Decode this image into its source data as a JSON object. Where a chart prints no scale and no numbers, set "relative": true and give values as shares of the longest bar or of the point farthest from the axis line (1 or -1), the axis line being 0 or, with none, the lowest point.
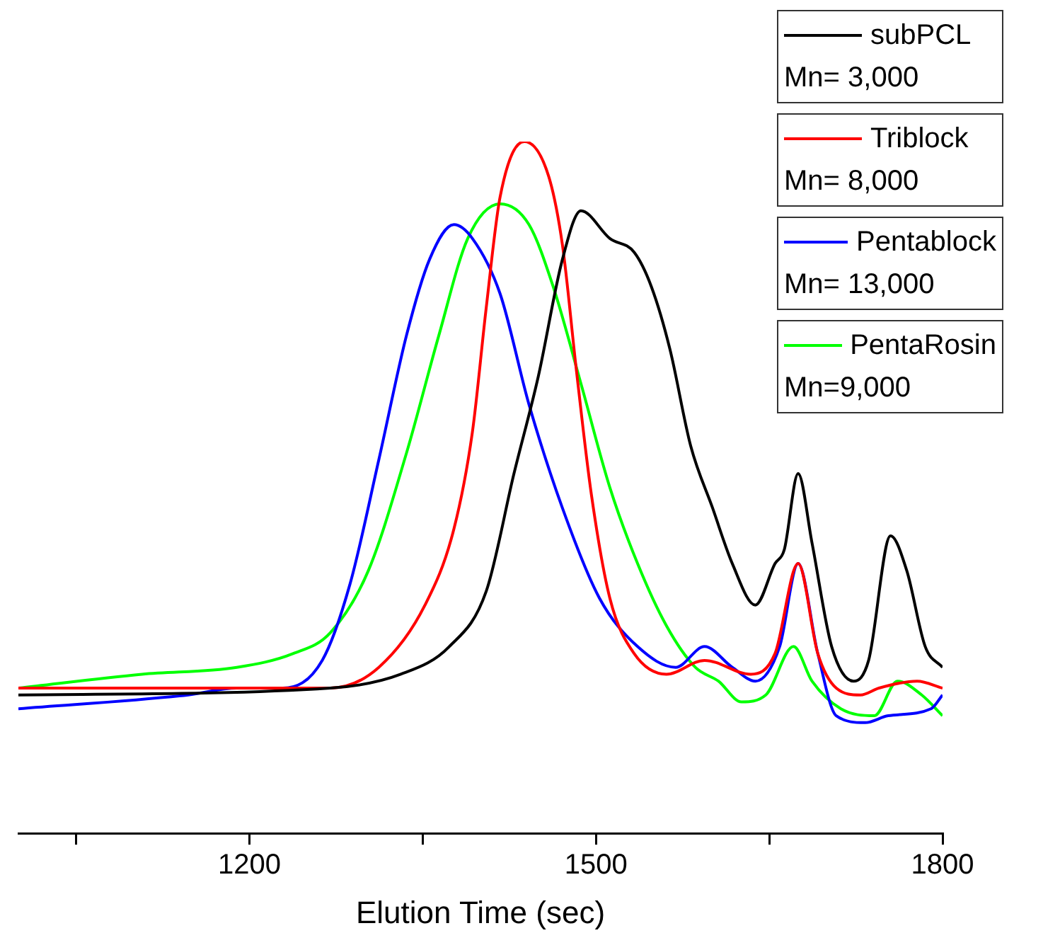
{
  "chart_data": {
    "type": "line",
    "xlabel": "Elution Time (sec)",
    "relative": true,
    "xlim": [
      1000,
      1800
    ],
    "xticks": [
      {
        "value": 1050,
        "label": null
      },
      1200,
      {
        "value": 1350,
        "label": null
      },
      1500,
      {
        "value": 1650,
        "label": null
      },
      1800
    ],
    "grid": false,
    "legend": "top right",
    "marker": "none",
    "line_style": "solid",
    "tick_labels": "x",
    "series": [
      {
        "name": "subPCL\nMn= 3,000",
        "color": "#000000",
        "x": [
          1000,
          1270,
          1331,
          1373,
          1405,
          1429,
          1450,
          1471,
          1487,
          1512,
          1533,
          1548,
          1564,
          1582,
          1601,
          1618,
          1638,
          1655,
          1663,
          1675,
          1687,
          1704,
          1723,
          1736,
          1755,
          1769,
          1785,
          1800
        ],
        "values": [
          0.2,
          0.21,
          0.23,
          0.27,
          0.35,
          0.52,
          0.66,
          0.83,
          0.9,
          0.86,
          0.84,
          0.79,
          0.7,
          0.56,
          0.47,
          0.39,
          0.33,
          0.39,
          0.41,
          0.52,
          0.42,
          0.27,
          0.22,
          0.25,
          0.43,
          0.38,
          0.27,
          0.24
        ]
      },
      {
        "name": "Triblock\nMn= 8,000",
        "color": "#ff0000",
        "x": [
          1000,
          1270,
          1312,
          1352,
          1377,
          1393,
          1405,
          1417,
          1438,
          1459,
          1471,
          1483,
          1496,
          1512,
          1533,
          1561,
          1594,
          1634,
          1655,
          1675,
          1692,
          1708,
          1729,
          1745,
          1778,
          1800
        ],
        "values": [
          0.21,
          0.21,
          0.24,
          0.33,
          0.44,
          0.58,
          0.76,
          0.92,
          1.0,
          0.95,
          0.85,
          0.67,
          0.49,
          0.34,
          0.26,
          0.23,
          0.25,
          0.23,
          0.26,
          0.39,
          0.26,
          0.21,
          0.2,
          0.21,
          0.22,
          0.21
        ]
      },
      {
        "name": "Pentablock\nMn= 13,000",
        "color": "#0000ff",
        "x": [
          1000,
          1147,
          1189,
          1229,
          1263,
          1287,
          1312,
          1336,
          1356,
          1377,
          1393,
          1417,
          1442,
          1471,
          1503,
          1536,
          1569,
          1594,
          1618,
          1638,
          1659,
          1675,
          1692,
          1708,
          1733,
          1753,
          1790,
          1800
        ],
        "values": [
          0.18,
          0.2,
          0.21,
          0.21,
          0.25,
          0.36,
          0.54,
          0.72,
          0.83,
          0.88,
          0.86,
          0.78,
          0.62,
          0.47,
          0.34,
          0.27,
          0.24,
          0.27,
          0.24,
          0.22,
          0.27,
          0.39,
          0.26,
          0.17,
          0.16,
          0.17,
          0.18,
          0.2
        ]
      },
      {
        "name": "PentaRosin\nMn=9,000",
        "color": "#00ff00",
        "x": [
          1000,
          1107,
          1189,
          1238,
          1270,
          1303,
          1336,
          1364,
          1389,
          1417,
          1442,
          1463,
          1487,
          1512,
          1536,
          1561,
          1586,
          1606,
          1626,
          1647,
          1671,
          1687,
          1712,
          1741,
          1761,
          1782,
          1800
        ],
        "values": [
          0.21,
          0.23,
          0.24,
          0.26,
          0.29,
          0.38,
          0.55,
          0.72,
          0.86,
          0.91,
          0.88,
          0.79,
          0.65,
          0.5,
          0.39,
          0.3,
          0.24,
          0.22,
          0.19,
          0.2,
          0.27,
          0.22,
          0.18,
          0.17,
          0.22,
          0.2,
          0.17
        ]
      }
    ]
  }
}
